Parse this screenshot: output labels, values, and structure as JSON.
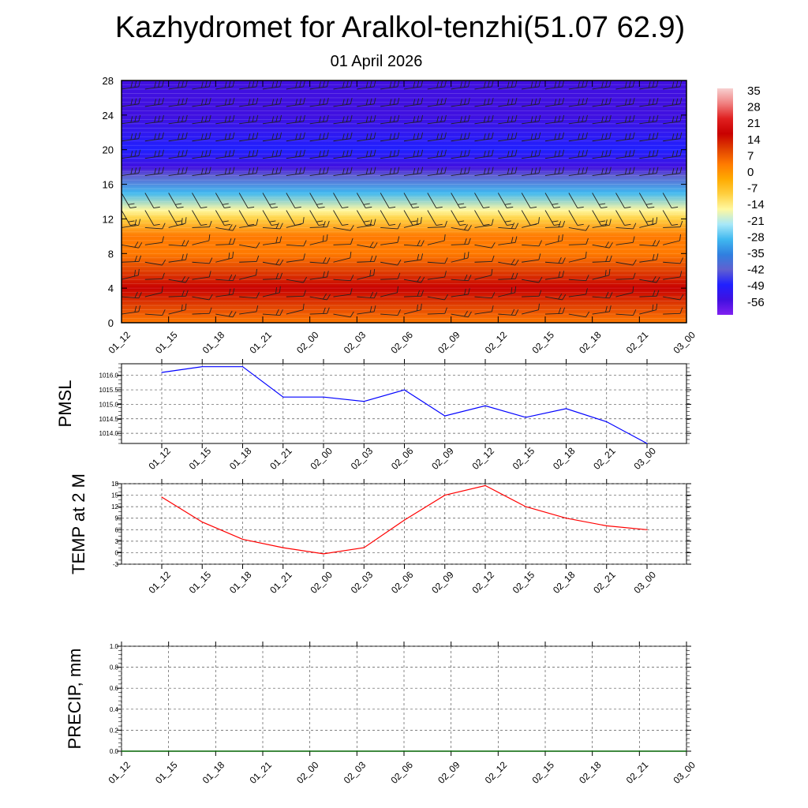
{
  "title": "Kazhydromet for Aralkol-tenzhi(51.07 62.9)",
  "subtitle": "01 April 2026",
  "time_labels": [
    "01_12",
    "01_15",
    "01_18",
    "01_21",
    "02_00",
    "02_03",
    "02_06",
    "02_09",
    "02_12",
    "02_15",
    "02_18",
    "02_21",
    "03_00"
  ],
  "chart_data": [
    {
      "type": "heatmap",
      "panel": "upper-air-temperature-wind",
      "x_categories": [
        "01_12",
        "01_15",
        "01_18",
        "01_21",
        "02_00",
        "02_03",
        "02_06",
        "02_09",
        "02_12",
        "02_15",
        "02_18",
        "02_21",
        "03_00"
      ],
      "y_ticks": [
        0,
        4,
        8,
        12,
        16,
        20,
        24,
        28
      ],
      "ylim": [
        0,
        28
      ],
      "colorbar_labels": [
        "35",
        "28",
        "21",
        "14",
        "7",
        "0",
        "-7",
        "-14",
        "-21",
        "-28",
        "-35",
        "-42",
        "-49",
        "-56"
      ],
      "colorbar_colors": [
        "#f7d0d0",
        "#f08080",
        "#e02020",
        "#c80000",
        "#e04000",
        "#ff7a00",
        "#ffaa00",
        "#ffd040",
        "#fff8a0",
        "#a8e8f8",
        "#40b8f0",
        "#3080e0",
        "#6060d0",
        "#2020ff",
        "#4010e0",
        "#8020f0"
      ],
      "temperature_profile": [
        {
          "level": 0,
          "value": 8
        },
        {
          "level": 2,
          "value": 14
        },
        {
          "level": 4,
          "value": 16
        },
        {
          "level": 6,
          "value": 11
        },
        {
          "level": 8,
          "value": 7
        },
        {
          "level": 10,
          "value": 2
        },
        {
          "level": 12,
          "value": -6
        },
        {
          "level": 13,
          "value": -18
        },
        {
          "level": 15,
          "value": -30
        },
        {
          "level": 17,
          "value": -45
        },
        {
          "level": 18,
          "value": -56
        },
        {
          "level": 20,
          "value": -50
        },
        {
          "level": 24,
          "value": -55
        },
        {
          "level": 28,
          "value": -56
        }
      ],
      "wind_levels": [
        1,
        3,
        5,
        7,
        9,
        11,
        13,
        15,
        17,
        19,
        21,
        23,
        25,
        27
      ]
    },
    {
      "type": "line",
      "name": "PMSL",
      "ylabel": "PMSL",
      "x": [
        "01_12",
        "01_15",
        "01_18",
        "01_21",
        "02_00",
        "02_03",
        "02_06",
        "02_09",
        "02_12",
        "02_15",
        "02_18",
        "02_21",
        "03_00"
      ],
      "values": [
        1016.1,
        1016.3,
        1016.3,
        1015.25,
        1015.25,
        1015.1,
        1015.5,
        1014.6,
        1014.95,
        1014.55,
        1014.85,
        1014.4,
        1013.65
      ],
      "y_ticks": [
        "1014.0",
        "1014.5",
        "1015.0",
        "1015.5",
        "1016.0"
      ],
      "ylim": [
        1013.65,
        1016.4
      ],
      "color": "#0000ff"
    },
    {
      "type": "line",
      "name": "TEMP at 2 M",
      "ylabel": "TEMP at 2 M",
      "x": [
        "01_12",
        "01_15",
        "01_18",
        "01_21",
        "02_00",
        "02_03",
        "02_06",
        "02_09",
        "02_12",
        "02_15",
        "02_18",
        "02_21",
        "03_00"
      ],
      "values": [
        14.5,
        8.0,
        3.5,
        1.3,
        -0.3,
        1.3,
        8.5,
        15.0,
        17.5,
        12.0,
        9.0,
        7.0,
        6.0
      ],
      "y_ticks": [
        "-3",
        "0",
        "3",
        "6",
        "9",
        "12",
        "15",
        "18"
      ],
      "ylim": [
        -3,
        18
      ],
      "color": "#ff0000"
    },
    {
      "type": "line",
      "name": "PRECIP, mm",
      "ylabel": "PRECIP, mm",
      "x": [
        "01_12",
        "01_15",
        "01_18",
        "01_21",
        "02_00",
        "02_03",
        "02_06",
        "02_09",
        "02_12",
        "02_15",
        "02_18",
        "02_21",
        "03_00"
      ],
      "values": [
        0,
        0,
        0,
        0,
        0,
        0,
        0,
        0,
        0,
        0,
        0,
        0,
        0
      ],
      "y_ticks": [
        "0.0",
        "0.2",
        "0.4",
        "0.6",
        "0.8",
        "1.0"
      ],
      "ylim": [
        0,
        1
      ],
      "color": "#006400"
    }
  ]
}
